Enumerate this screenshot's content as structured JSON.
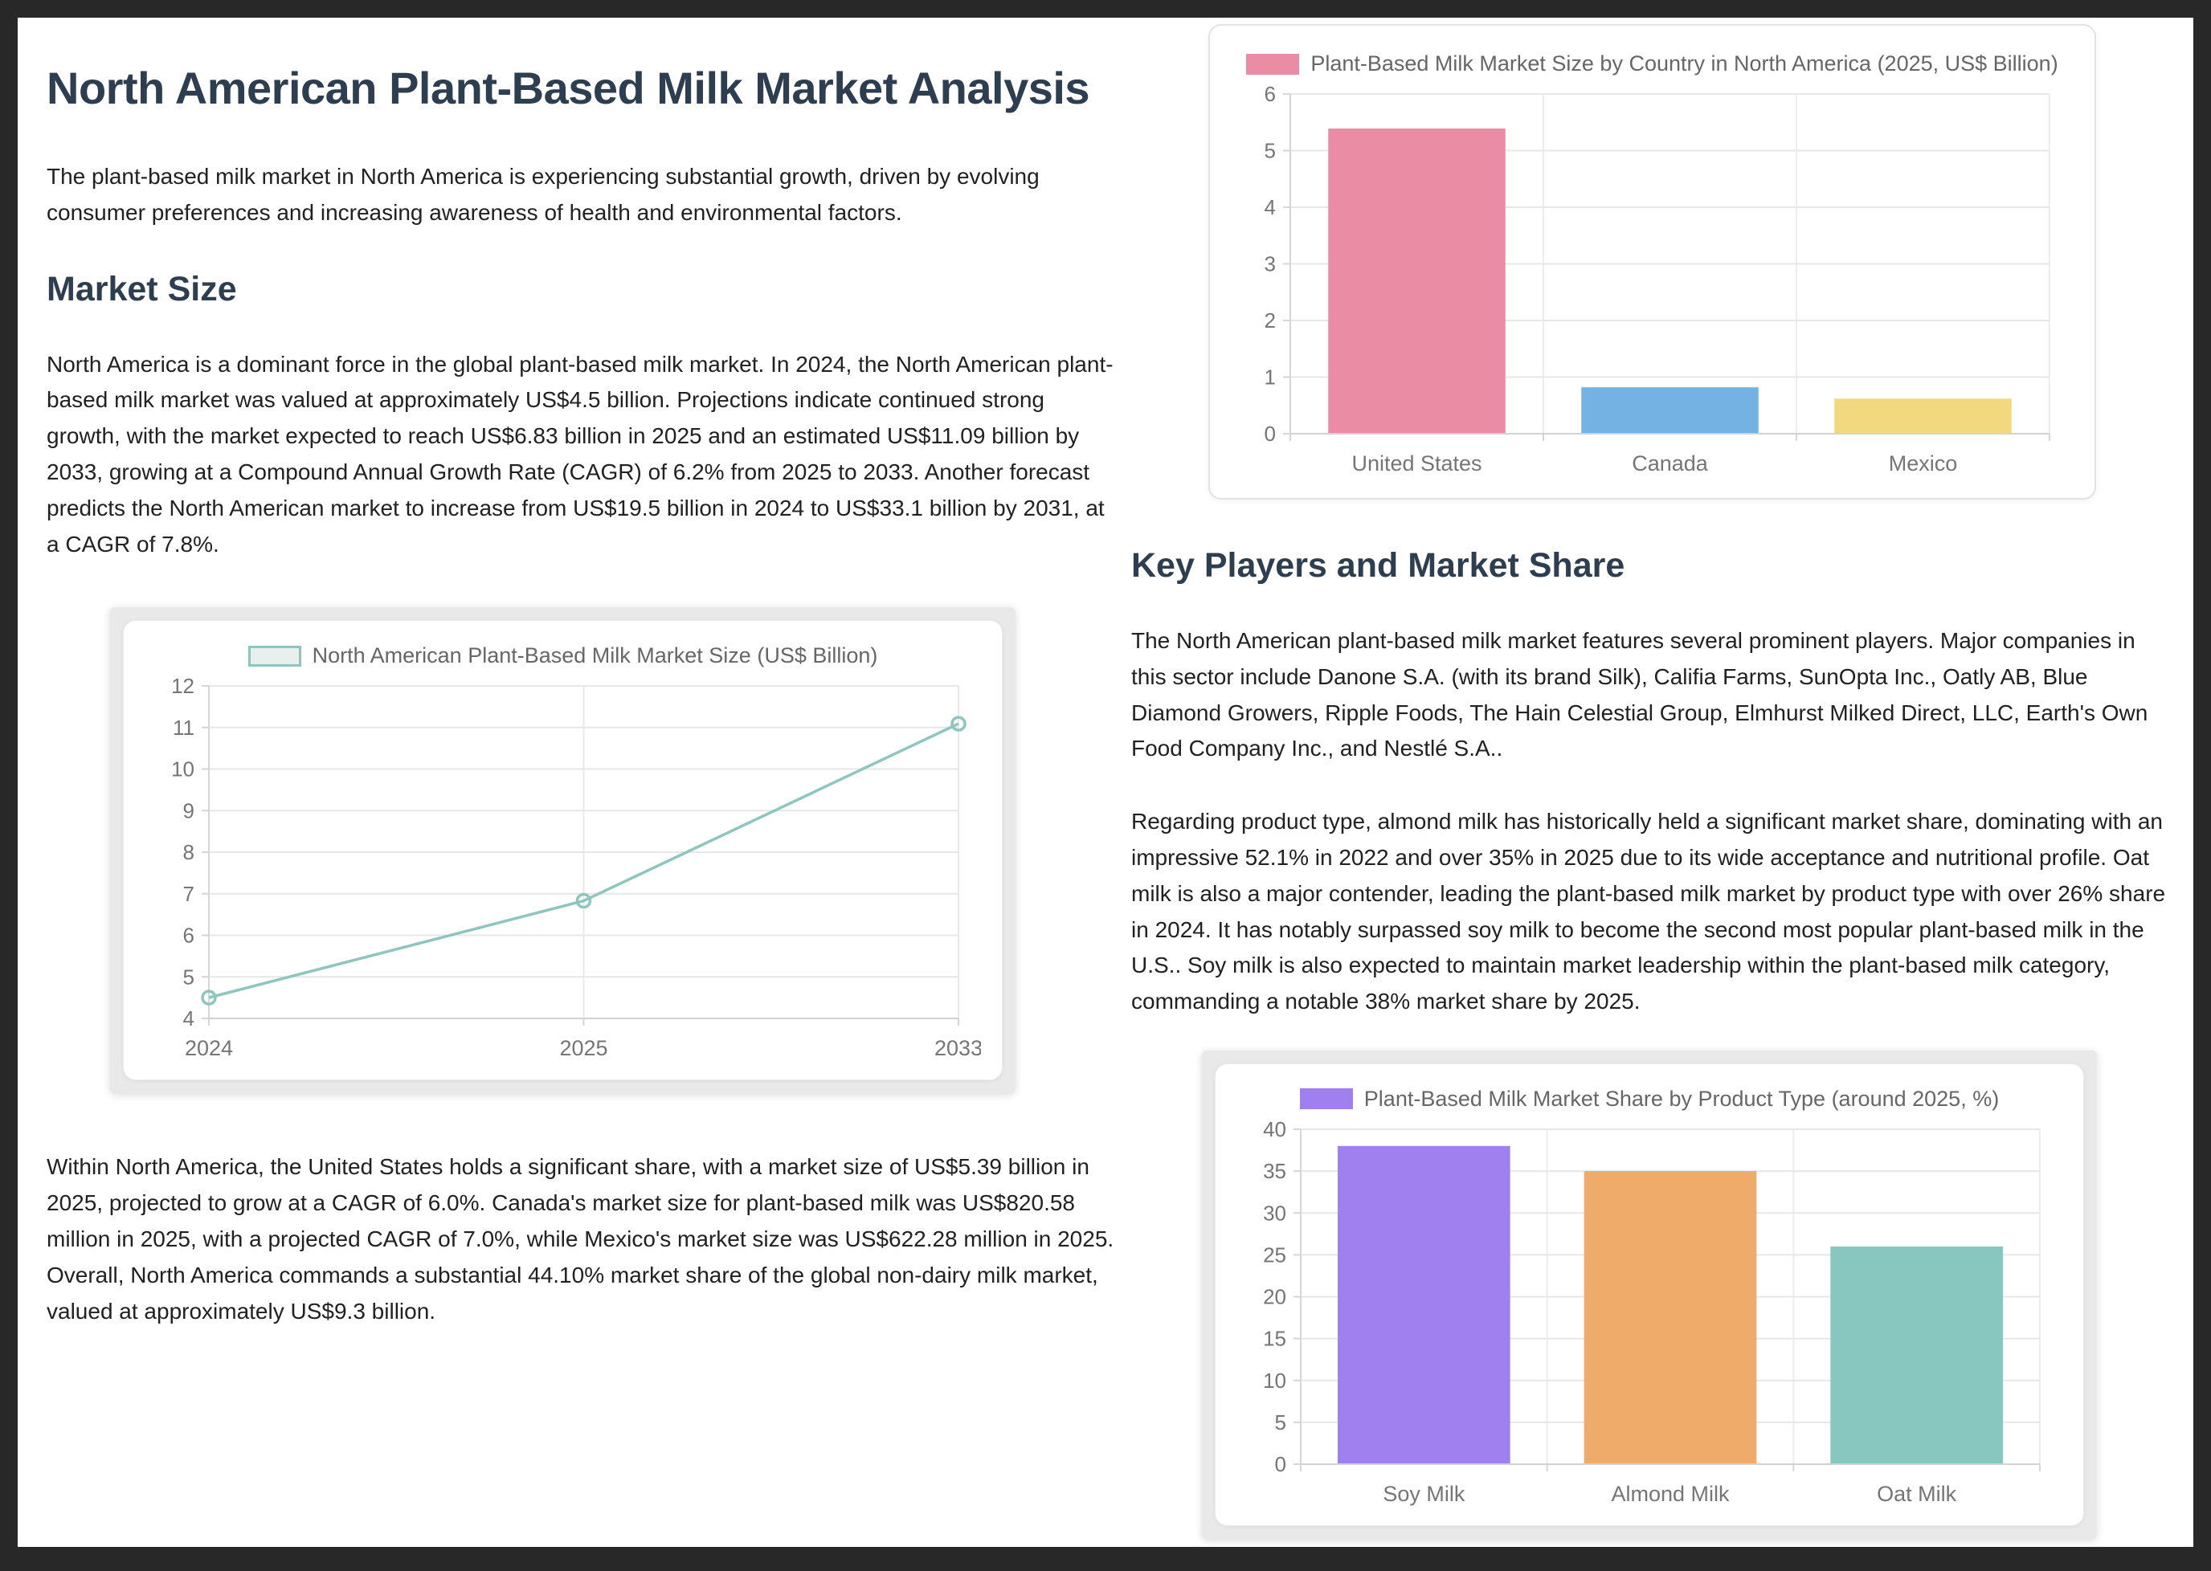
{
  "page": {
    "title": "North American Plant-Based Milk Market Analysis",
    "intro": "The plant-based milk market in North America is experiencing substantial growth, driven by evolving consumer preferences and increasing awareness of health and environmental factors.",
    "sections": {
      "market_size": {
        "heading": "Market Size",
        "para1": "North America is a dominant force in the global plant-based milk market. In 2024, the North American plant-based milk market was valued at approximately US$4.5 billion. Projections indicate continued strong growth, with the market expected to reach US$6.83 billion in 2025 and an estimated US$11.09 billion by 2033, growing at a Compound Annual Growth Rate (CAGR) of 6.2% from 2025 to 2033. Another forecast predicts the North American market to increase from US$19.5 billion in 2024 to US$33.1 billion by 2031, at a CAGR of 7.8%.",
        "para2": "Within North America, the United States holds a significant share, with a market size of US$5.39 billion in 2025, projected to grow at a CAGR of 6.0%. Canada's market size for plant-based milk was US$820.58 million in 2025, with a projected CAGR of 7.0%, while Mexico's market size was US$622.28 million in 2025. Overall, North America commands a substantial 44.10% market share of the global non-dairy milk market, valued at approximately US$9.3 billion."
      },
      "key_players": {
        "heading": "Key Players and Market Share",
        "para1": "The North American plant-based milk market features several prominent players. Major companies in this sector include Danone S.A. (with its brand Silk), Califia Farms, SunOpta Inc., Oatly AB, Blue Diamond Growers, Ripple Foods, The Hain Celestial Group, Elmhurst Milked Direct, LLC, Earth's Own Food Company Inc., and Nestlé S.A..",
        "para2": "Regarding product type, almond milk has historically held a significant market share, dominating with an impressive 52.1% in 2022 and over 35% in 2025 due to its wide acceptance and nutritional profile. Oat milk is also a major contender, leading the plant-based milk market by product type with over 26% share in 2024. It has notably surpassed soy milk to become the second most popular plant-based milk in the U.S.. Soy milk is also expected to maintain market leadership within the plant-based milk category, commanding a notable 38% market share by 2025."
      }
    }
  },
  "chart_data": [
    {
      "id": "country-bar",
      "type": "bar",
      "title": "Plant-Based Milk Market Size by Country in North America (2025, US$ Billion)",
      "categories": [
        "United States",
        "Canada",
        "Mexico"
      ],
      "values": [
        5.39,
        0.82,
        0.62
      ],
      "bar_colors": [
        "#e98ca4",
        "#74b2e4",
        "#f2d87f"
      ],
      "legend_color": "#e98ca4",
      "xlabel": "",
      "ylabel": "",
      "ylim": [
        0,
        6
      ],
      "ytick_step": 1,
      "bar_fraction": 0.7,
      "grid": true,
      "legend_position": "top"
    },
    {
      "id": "market-size-line",
      "type": "line",
      "title": "North American Plant-Based Milk Market Size (US$ Billion)",
      "categories": [
        "2024",
        "2025",
        "2033"
      ],
      "values": [
        4.5,
        6.83,
        11.09
      ],
      "line_color": "#8ec6bf",
      "legend_fill": "#e9efec",
      "xlabel": "",
      "ylabel": "",
      "ylim": [
        4,
        12
      ],
      "ytick_step": 1,
      "grid": true,
      "legend_position": "top"
    },
    {
      "id": "product-share-bar",
      "type": "bar",
      "title": "Plant-Based Milk Market Share by Product Type (around 2025, %)",
      "categories": [
        "Soy Milk",
        "Almond Milk",
        "Oat Milk"
      ],
      "values": [
        38,
        35,
        26
      ],
      "bar_colors": [
        "#9f80ee",
        "#efab69",
        "#87c7c0"
      ],
      "legend_color": "#9f80ee",
      "xlabel": "",
      "ylabel": "",
      "ylim": [
        0,
        40
      ],
      "ytick_step": 5,
      "bar_fraction": 0.7,
      "grid": true,
      "legend_position": "top"
    }
  ],
  "colors": {
    "frame_background": "#282828",
    "page_background": "#ffffff",
    "heading": "#2d3e50",
    "body_text": "#212121",
    "chart_text": "#757575",
    "legend_text": "#666666",
    "gridline": "#e7e7e7",
    "axis_line": "#d6d6d6",
    "card_border": "#e3e3e3",
    "figure_matte": "#e9e9e9"
  }
}
